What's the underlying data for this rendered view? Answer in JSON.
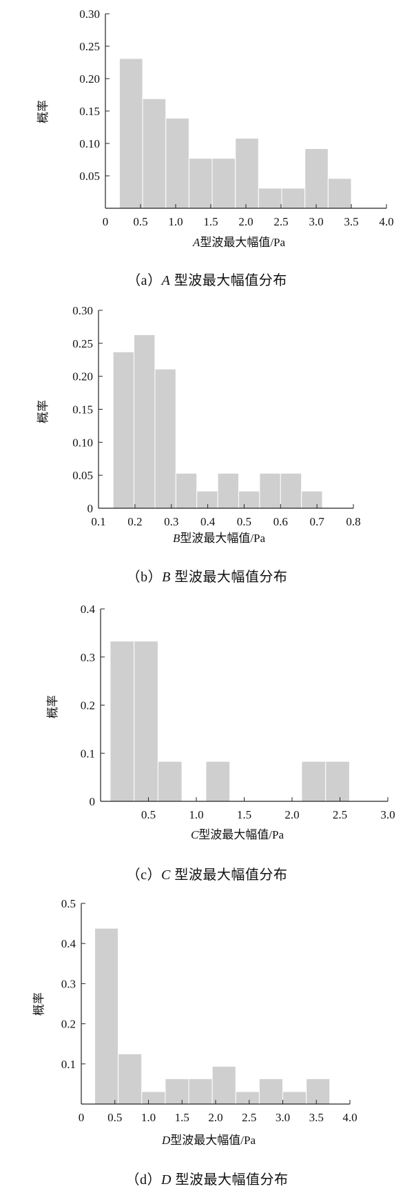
{
  "chart_data": [
    {
      "type": "bar",
      "caption_prefix": "（a）",
      "caption_letter": "A",
      "caption_suffix": " 型波最大幅值分布",
      "xlabel_letter": "A",
      "xlabel_text": "型波最大幅值/Pa",
      "ylabel": "概率",
      "xlim": [
        0,
        4.0
      ],
      "ylim": [
        0,
        0.3
      ],
      "xticks": [
        0,
        0.5,
        1.0,
        1.5,
        2.0,
        2.5,
        3.0,
        3.5,
        4.0
      ],
      "xtick_labels": [
        "0",
        "0.5",
        "1.0",
        "1.5",
        "2.0",
        "2.5",
        "3.0",
        "3.5",
        "4.0"
      ],
      "yticks": [
        0.05,
        0.1,
        0.15,
        0.2,
        0.25,
        0.3
      ],
      "ytick_labels": [
        "0.05",
        "0.10",
        "0.15",
        "0.20",
        "0.25",
        "0.30"
      ],
      "bin_start": 0.2,
      "bin_width": 0.33,
      "values": [
        0.231,
        0.169,
        0.139,
        0.077,
        0.077,
        0.108,
        0.031,
        0.031,
        0.092,
        0.046
      ]
    },
    {
      "type": "bar",
      "caption_prefix": "（b）",
      "caption_letter": "B",
      "caption_suffix": " 型波最大幅值分布",
      "xlabel_letter": "B",
      "xlabel_text": "型波最大幅值/Pa",
      "ylabel": "概率",
      "xlim": [
        0.1,
        0.8
      ],
      "ylim": [
        0,
        0.3
      ],
      "xticks": [
        0.1,
        0.2,
        0.3,
        0.4,
        0.5,
        0.6,
        0.7,
        0.8
      ],
      "xtick_labels": [
        "0.1",
        "0.2",
        "0.3",
        "0.4",
        "0.5",
        "0.6",
        "0.7",
        "0.8"
      ],
      "yticks": [
        0,
        0.05,
        0.1,
        0.15,
        0.2,
        0.25,
        0.3
      ],
      "ytick_labels": [
        "0",
        "0.05",
        "0.10",
        "0.15",
        "0.20",
        "0.25",
        "0.30"
      ],
      "bin_start": 0.14,
      "bin_width": 0.0575,
      "values": [
        0.237,
        0.263,
        0.211,
        0.053,
        0.026,
        0.053,
        0.026,
        0.053,
        0.053,
        0.026
      ]
    },
    {
      "type": "bar",
      "caption_prefix": "（c）",
      "caption_letter": "C",
      "caption_suffix": " 型波最大幅值分布",
      "xlabel_letter": "C",
      "xlabel_text": "型波最大幅值/Pa",
      "ylabel": "概率",
      "xlim": [
        0,
        3.0
      ],
      "ylim": [
        0,
        0.4
      ],
      "xticks": [
        0.5,
        1.0,
        1.5,
        2.0,
        2.5,
        3.0
      ],
      "xtick_labels": [
        "0.5",
        "1.0",
        "1.5",
        "2.0",
        "2.5",
        "3.0"
      ],
      "yticks": [
        0,
        0.1,
        0.2,
        0.3,
        0.4
      ],
      "ytick_labels": [
        "0",
        "0.1",
        "0.2",
        "0.3",
        "0.4"
      ],
      "bin_start": 0.1,
      "bin_width": 0.25,
      "values": [
        0.333,
        0.333,
        0.083,
        0,
        0.083,
        0,
        0,
        0,
        0.083,
        0.083
      ]
    },
    {
      "type": "bar",
      "caption_prefix": "（d）",
      "caption_letter": "D",
      "caption_suffix": " 型波最大幅值分布",
      "xlabel_letter": "D",
      "xlabel_text": "型波最大幅值/Pa",
      "ylabel": "概率",
      "xlim": [
        0,
        4.0
      ],
      "ylim": [
        0,
        0.5
      ],
      "xticks": [
        0,
        0.5,
        1.0,
        1.5,
        2.0,
        2.5,
        3.0,
        3.5,
        4.0
      ],
      "xtick_labels": [
        "0",
        "0.5",
        "1.0",
        "1.5",
        "2.0",
        "2.5",
        "3.0",
        "3.5",
        "4.0"
      ],
      "yticks": [
        0.1,
        0.2,
        0.3,
        0.4,
        0.5
      ],
      "ytick_labels": [
        "0.1",
        "0.2",
        "0.3",
        "0.4",
        "0.5"
      ],
      "bin_start": 0.2,
      "bin_width": 0.35,
      "values": [
        0.438,
        0.125,
        0.031,
        0.063,
        0.063,
        0.094,
        0.031,
        0.063,
        0.031,
        0.063
      ]
    }
  ]
}
